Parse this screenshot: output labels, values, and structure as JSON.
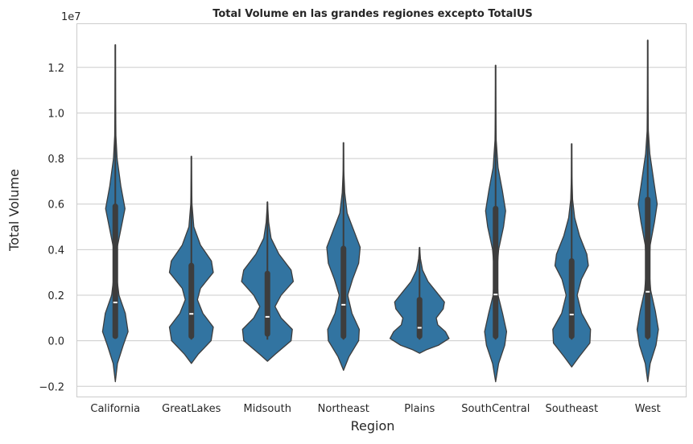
{
  "chart_data": {
    "type": "violin",
    "title": "Total Volume en las grandes regiones excepto TotalUS",
    "xlabel": "Region",
    "ylabel": "Total Volume",
    "y_offset_label": "1e7",
    "y_scale_factor": 10000000,
    "ylim": [
      -0.245,
      1.39
    ],
    "yticks": [
      -0.2,
      0.0,
      0.2,
      0.4,
      0.6,
      0.8,
      1.0,
      1.2
    ],
    "ytick_labels": [
      "−0.2",
      "0.0",
      "0.2",
      "0.4",
      "0.6",
      "0.8",
      "1.0",
      "1.2"
    ],
    "grid": "horizontal",
    "fill_color": "#3274a1",
    "edge_color": "#3d3d3d",
    "categories": [
      "California",
      "GreatLakes",
      "Midsouth",
      "Northeast",
      "Plains",
      "SouthCentral",
      "Southeast",
      "West"
    ],
    "violins": [
      {
        "category": "California",
        "min": 0.01,
        "q1": 0.02,
        "median": 0.168,
        "q3": 0.59,
        "max": 1.3,
        "kde_min": -0.18,
        "kde_max": 1.3,
        "density": [
          [
            -0.18,
            0.0
          ],
          [
            -0.1,
            0.07
          ],
          [
            -0.02,
            0.26
          ],
          [
            0.04,
            0.42
          ],
          [
            0.12,
            0.33
          ],
          [
            0.2,
            0.12
          ],
          [
            0.3,
            0.03
          ],
          [
            0.4,
            0.05
          ],
          [
            0.5,
            0.2
          ],
          [
            0.58,
            0.32
          ],
          [
            0.68,
            0.18
          ],
          [
            0.8,
            0.06
          ],
          [
            0.9,
            0.02
          ],
          [
            1.05,
            0.01
          ],
          [
            1.3,
            0.0
          ]
        ]
      },
      {
        "category": "GreatLakes",
        "min": 0.005,
        "q1": 0.02,
        "median": 0.118,
        "q3": 0.33,
        "max": 0.81,
        "kde_min": -0.1,
        "kde_max": 0.81,
        "density": [
          [
            -0.1,
            0.0
          ],
          [
            -0.06,
            0.22
          ],
          [
            0.0,
            0.65
          ],
          [
            0.06,
            0.72
          ],
          [
            0.12,
            0.38
          ],
          [
            0.18,
            0.2
          ],
          [
            0.23,
            0.3
          ],
          [
            0.3,
            0.72
          ],
          [
            0.35,
            0.66
          ],
          [
            0.42,
            0.3
          ],
          [
            0.5,
            0.08
          ],
          [
            0.6,
            0.02
          ],
          [
            0.7,
            0.01
          ],
          [
            0.81,
            0.0
          ]
        ]
      },
      {
        "category": "Midsouth",
        "min": 0.005,
        "q1": 0.03,
        "median": 0.105,
        "q3": 0.295,
        "max": 0.61,
        "kde_min": -0.09,
        "kde_max": 0.61,
        "density": [
          [
            -0.09,
            0.0
          ],
          [
            -0.06,
            0.25
          ],
          [
            0.0,
            0.78
          ],
          [
            0.05,
            0.82
          ],
          [
            0.1,
            0.45
          ],
          [
            0.15,
            0.25
          ],
          [
            0.2,
            0.45
          ],
          [
            0.26,
            0.85
          ],
          [
            0.31,
            0.78
          ],
          [
            0.38,
            0.38
          ],
          [
            0.45,
            0.12
          ],
          [
            0.52,
            0.04
          ],
          [
            0.61,
            0.0
          ]
        ]
      },
      {
        "category": "Northeast",
        "min": 0.005,
        "q1": 0.02,
        "median": 0.158,
        "q3": 0.405,
        "max": 0.87,
        "kde_min": -0.13,
        "kde_max": 0.87,
        "density": [
          [
            -0.13,
            0.0
          ],
          [
            -0.07,
            0.18
          ],
          [
            0.0,
            0.5
          ],
          [
            0.05,
            0.52
          ],
          [
            0.12,
            0.28
          ],
          [
            0.2,
            0.14
          ],
          [
            0.27,
            0.3
          ],
          [
            0.34,
            0.5
          ],
          [
            0.41,
            0.55
          ],
          [
            0.48,
            0.35
          ],
          [
            0.56,
            0.12
          ],
          [
            0.65,
            0.04
          ],
          [
            0.75,
            0.01
          ],
          [
            0.87,
            0.0
          ]
        ]
      },
      {
        "category": "Plains",
        "min": 0.005,
        "q1": 0.02,
        "median": 0.057,
        "q3": 0.18,
        "max": 0.41,
        "kde_min": -0.055,
        "kde_max": 0.41,
        "density": [
          [
            -0.055,
            0.0
          ],
          [
            -0.04,
            0.22
          ],
          [
            -0.02,
            0.62
          ],
          [
            0.01,
            0.97
          ],
          [
            0.04,
            0.85
          ],
          [
            0.07,
            0.6
          ],
          [
            0.1,
            0.55
          ],
          [
            0.14,
            0.78
          ],
          [
            0.17,
            0.82
          ],
          [
            0.21,
            0.58
          ],
          [
            0.26,
            0.28
          ],
          [
            0.31,
            0.1
          ],
          [
            0.36,
            0.03
          ],
          [
            0.41,
            0.0
          ]
        ]
      },
      {
        "category": "SouthCentral",
        "min": 0.005,
        "q1": 0.02,
        "median": 0.203,
        "q3": 0.58,
        "max": 1.21,
        "kde_min": -0.18,
        "kde_max": 1.21,
        "density": [
          [
            -0.18,
            0.0
          ],
          [
            -0.1,
            0.1
          ],
          [
            -0.02,
            0.3
          ],
          [
            0.04,
            0.36
          ],
          [
            0.12,
            0.23
          ],
          [
            0.2,
            0.08
          ],
          [
            0.3,
            0.04
          ],
          [
            0.4,
            0.1
          ],
          [
            0.5,
            0.26
          ],
          [
            0.57,
            0.33
          ],
          [
            0.66,
            0.22
          ],
          [
            0.76,
            0.08
          ],
          [
            0.88,
            0.02
          ],
          [
            1.0,
            0.01
          ],
          [
            1.21,
            0.0
          ]
        ]
      },
      {
        "category": "Southeast",
        "min": 0.005,
        "q1": 0.02,
        "median": 0.115,
        "q3": 0.35,
        "max": 0.865,
        "kde_min": -0.115,
        "kde_max": 0.865,
        "density": [
          [
            -0.115,
            0.0
          ],
          [
            -0.07,
            0.25
          ],
          [
            -0.01,
            0.6
          ],
          [
            0.05,
            0.62
          ],
          [
            0.12,
            0.33
          ],
          [
            0.2,
            0.18
          ],
          [
            0.27,
            0.32
          ],
          [
            0.33,
            0.55
          ],
          [
            0.38,
            0.5
          ],
          [
            0.46,
            0.26
          ],
          [
            0.54,
            0.1
          ],
          [
            0.62,
            0.03
          ],
          [
            0.72,
            0.01
          ],
          [
            0.865,
            0.0
          ]
        ]
      },
      {
        "category": "West",
        "min": 0.005,
        "q1": 0.02,
        "median": 0.215,
        "q3": 0.62,
        "max": 1.32,
        "kde_min": -0.18,
        "kde_max": 1.32,
        "density": [
          [
            -0.18,
            0.0
          ],
          [
            -0.1,
            0.08
          ],
          [
            -0.02,
            0.27
          ],
          [
            0.05,
            0.35
          ],
          [
            0.13,
            0.25
          ],
          [
            0.22,
            0.1
          ],
          [
            0.32,
            0.04
          ],
          [
            0.42,
            0.08
          ],
          [
            0.52,
            0.22
          ],
          [
            0.6,
            0.31
          ],
          [
            0.7,
            0.2
          ],
          [
            0.82,
            0.07
          ],
          [
            0.92,
            0.02
          ],
          [
            1.08,
            0.01
          ],
          [
            1.32,
            0.0
          ]
        ]
      }
    ]
  }
}
